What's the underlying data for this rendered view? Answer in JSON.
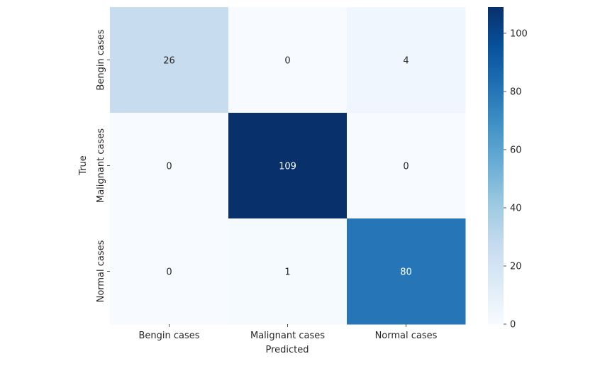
{
  "chart_data": {
    "type": "heatmap",
    "title": "",
    "xlabel": "Predicted",
    "ylabel": "True",
    "x_categories": [
      "Bengin cases",
      "Malignant cases",
      "Normal cases"
    ],
    "y_categories": [
      "Bengin cases",
      "Malignant cases",
      "Normal cases"
    ],
    "values": [
      [
        26,
        0,
        4
      ],
      [
        0,
        109,
        0
      ],
      [
        0,
        1,
        80
      ]
    ],
    "colorbar": {
      "range": [
        0,
        109
      ],
      "ticks": [
        0,
        20,
        40,
        60,
        80,
        100
      ],
      "colormap": "Blues"
    },
    "grid": false
  }
}
